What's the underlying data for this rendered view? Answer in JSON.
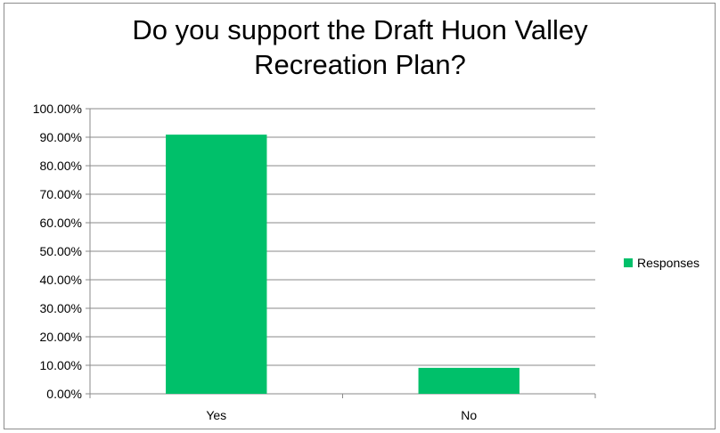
{
  "colors": {
    "series": "#00c06a",
    "grid": "#8a8a8a",
    "axis": "#8a8a8a"
  },
  "chart_data": {
    "type": "bar",
    "title_lines": [
      "Do you support the Draft Huon Valley",
      "Recreation Plan?"
    ],
    "categories": [
      "Yes",
      "No"
    ],
    "series": [
      {
        "name": "Responses",
        "values": [
          90.9,
          9.1
        ]
      }
    ],
    "ylim": [
      0,
      100
    ],
    "yticks": [
      "0.00%",
      "10.00%",
      "20.00%",
      "30.00%",
      "40.00%",
      "50.00%",
      "60.00%",
      "70.00%",
      "80.00%",
      "90.00%",
      "100.00%"
    ],
    "grid": true,
    "legend_position": "right"
  }
}
